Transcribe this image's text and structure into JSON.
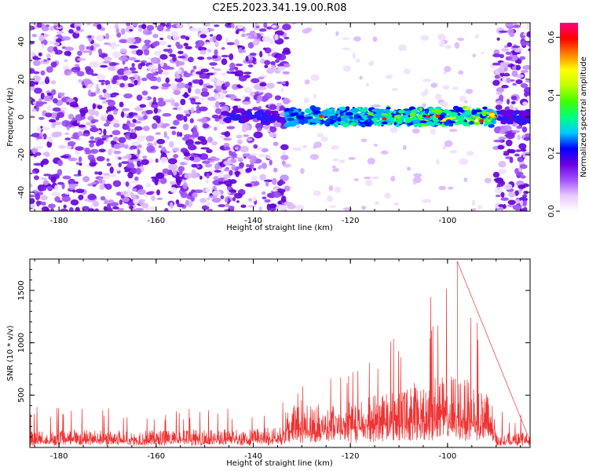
{
  "title": "C2E5.2023.341.19.00.R08",
  "chart_data": [
    {
      "type": "heatmap",
      "xlabel": "Height of straight line (km)",
      "ylabel": "Frequency (Hz)",
      "xlim": [
        -186,
        -83
      ],
      "ylim": [
        -50,
        50
      ],
      "xticks": [
        -180,
        -160,
        -140,
        -120,
        -100
      ],
      "yticks": [
        -40,
        -20,
        0,
        20,
        40
      ],
      "signal_band": {
        "x_from": -133,
        "x_to": -90,
        "center_freq": 0,
        "half_width_hz": 5
      },
      "quiet_region": {
        "x_from": -133,
        "x_to": -90
      },
      "colorbar": {
        "label": "Normalized spectral amplitude",
        "range": [
          0.0,
          0.65
        ],
        "ticks": [
          0.0,
          0.2,
          0.4,
          0.6
        ],
        "colors": [
          "#ffffff",
          "#e8c8ff",
          "#a050ff",
          "#6a00e0",
          "#0000ff",
          "#00ccff",
          "#00ff80",
          "#40ff00",
          "#c0ff00",
          "#ffff00",
          "#ff8000",
          "#ff0000",
          "#ff0080"
        ]
      }
    },
    {
      "type": "line",
      "xlabel": "Height of straight line (km)",
      "ylabel": "SNR (10 * v/v)",
      "xlim": [
        -186,
        -83
      ],
      "ylim": [
        0,
        1800
      ],
      "xticks": [
        -180,
        -160,
        -140,
        -120,
        -100
      ],
      "yticks": [
        500,
        1000,
        1500
      ],
      "color": "#ee3333",
      "envelope": [
        {
          "x": -186,
          "base": 100,
          "peak": 400
        },
        {
          "x": -160,
          "base": 100,
          "peak": 370
        },
        {
          "x": -140,
          "base": 110,
          "peak": 380
        },
        {
          "x": -134,
          "base": 120,
          "peak": 420
        },
        {
          "x": -133,
          "base": 250,
          "peak": 600
        },
        {
          "x": -125,
          "base": 250,
          "peak": 700
        },
        {
          "x": -118,
          "base": 280,
          "peak": 800
        },
        {
          "x": -112,
          "base": 350,
          "peak": 1050
        },
        {
          "x": -106,
          "base": 380,
          "peak": 1300
        },
        {
          "x": -102,
          "base": 420,
          "peak": 1560
        },
        {
          "x": -98,
          "base": 420,
          "peak": 1780
        },
        {
          "x": -95,
          "base": 380,
          "peak": 1450
        },
        {
          "x": -91,
          "base": 300,
          "peak": 700
        },
        {
          "x": -90,
          "base": 90,
          "peak": 350
        },
        {
          "x": -83,
          "base": 90,
          "peak": 300
        }
      ]
    }
  ]
}
